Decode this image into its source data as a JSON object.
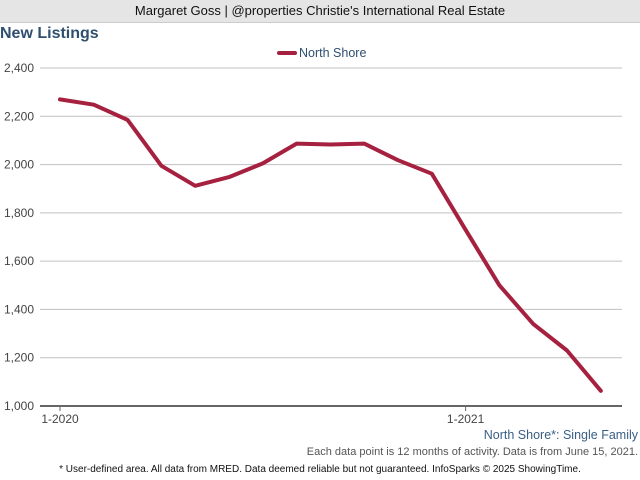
{
  "header": {
    "text": "Margaret Goss | @properties Christie's International Real Estate"
  },
  "chart_title": "New Listings",
  "region_note": "North Shore*: Single Family",
  "data_note": "Each data point is 12 months of activity. Data is from June 15, 2021.",
  "footer_note": "* User-defined area. All data from MRED. Data deemed reliable but not guaranteed. InfoSparks © 2025 ShowingTime.",
  "colors": {
    "series": "#a5213f",
    "title": "#2f4f6f",
    "grid": "#c0c0c0"
  },
  "chart_data": {
    "type": "line",
    "title": "New Listings",
    "xlabel": "",
    "ylabel": "",
    "ylim": [
      1000,
      2400
    ],
    "yticks": [
      1000,
      1200,
      1400,
      1600,
      1800,
      2000,
      2200,
      2400
    ],
    "ytick_labels": [
      "1,000",
      "1,200",
      "1,400",
      "1,600",
      "1,800",
      "2,000",
      "2,200",
      "2,400"
    ],
    "xtick_labels": [
      {
        "label": "1-2020",
        "index": 0
      },
      {
        "label": "1-2021",
        "index": 12
      }
    ],
    "grid": true,
    "legend_position": "top",
    "x": [
      "1-2020",
      "2-2020",
      "3-2020",
      "4-2020",
      "5-2020",
      "6-2020",
      "7-2020",
      "8-2020",
      "9-2020",
      "10-2020",
      "11-2020",
      "12-2020",
      "1-2021",
      "2-2021",
      "3-2021",
      "4-2021",
      "5-2021"
    ],
    "series": [
      {
        "name": "North Shore",
        "values": [
          2270,
          2248,
          2185,
          1995,
          1912,
          1948,
          2005,
          2087,
          2083,
          2087,
          2018,
          1962,
          1730,
          1500,
          1340,
          1230,
          1063
        ]
      }
    ]
  }
}
